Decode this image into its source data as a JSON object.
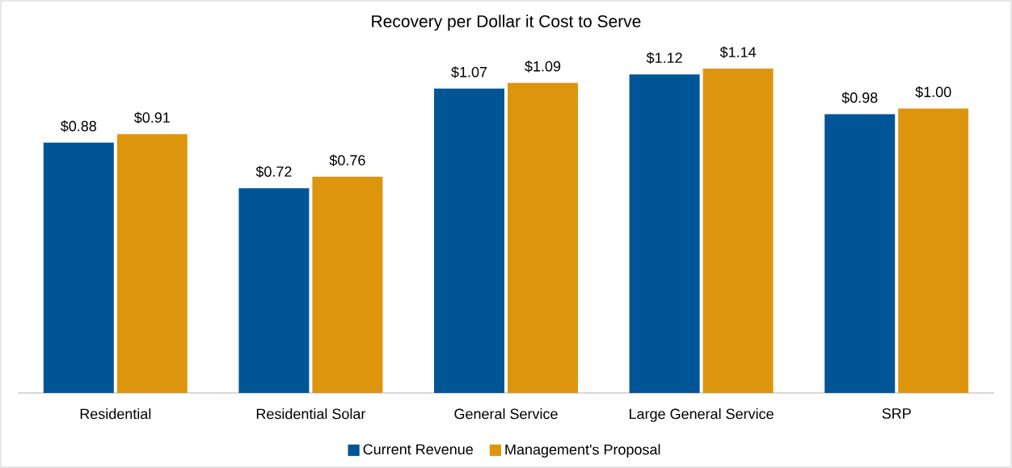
{
  "chart_data": {
    "type": "bar",
    "title": "Recovery per Dollar it Cost to Serve",
    "categories": [
      "Residential",
      "Residential Solar",
      "General Service",
      "Large General Service",
      "SRP"
    ],
    "series": [
      {
        "name": "Current Revenue",
        "color": "#005596",
        "values": [
          0.88,
          0.72,
          1.07,
          1.12,
          0.98
        ],
        "value_labels": [
          "$0.88",
          "$0.72",
          "$1.07",
          "$1.12",
          "$0.98"
        ]
      },
      {
        "name": "Management's Proposal",
        "color": "#de950e",
        "values": [
          0.91,
          0.76,
          1.09,
          1.14,
          1.0
        ],
        "value_labels": [
          "$0.91",
          "$0.76",
          "$1.09",
          "$1.14",
          "$1.00"
        ]
      }
    ],
    "tick_labels": "x",
    "legend": "bottom"
  }
}
